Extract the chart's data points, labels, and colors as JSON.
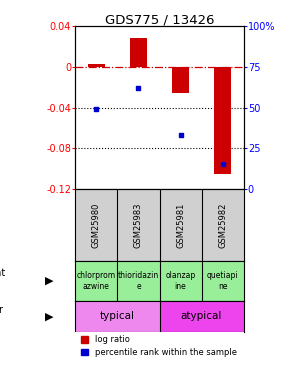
{
  "title": "GDS775 / 13426",
  "samples": [
    "GSM25980",
    "GSM25983",
    "GSM25981",
    "GSM25982"
  ],
  "log_ratios": [
    0.003,
    0.028,
    -0.026,
    -0.105
  ],
  "percentile_ranks": [
    49,
    62,
    33,
    15
  ],
  "ylim_left": [
    -0.12,
    0.04
  ],
  "ylim_right": [
    0,
    100
  ],
  "yticks_left": [
    0.04,
    0,
    -0.04,
    -0.08,
    -0.12
  ],
  "yticks_right": [
    100,
    75,
    50,
    25,
    0
  ],
  "ytick_labels_left": [
    "0.04",
    "0",
    "-0.04",
    "-0.08",
    "-0.12"
  ],
  "ytick_labels_right": [
    "100%",
    "75",
    "50",
    "25",
    "0"
  ],
  "bar_color": "#cc0000",
  "dot_color": "#0000cc",
  "agent_labels": [
    "chlorprom\nazwine",
    "thioridazin\ne",
    "olanzap\nine",
    "quetiapi\nne"
  ],
  "agent_color": "#99ee99",
  "typical_label": "typical",
  "atypical_label": "atypical",
  "typical_color": "#ee88ee",
  "atypical_color": "#ee44ee",
  "legend_bar_label": "log ratio",
  "legend_dot_label": "percentile rank within the sample",
  "background_plot": "#ffffff",
  "background_table": "#d0d0d0",
  "hline_color": "#cc0000",
  "hline_style": "-.",
  "dotted_line_color": "#000000",
  "title_fontsize": 9.5,
  "tick_fontsize": 7,
  "bar_width": 0.4
}
